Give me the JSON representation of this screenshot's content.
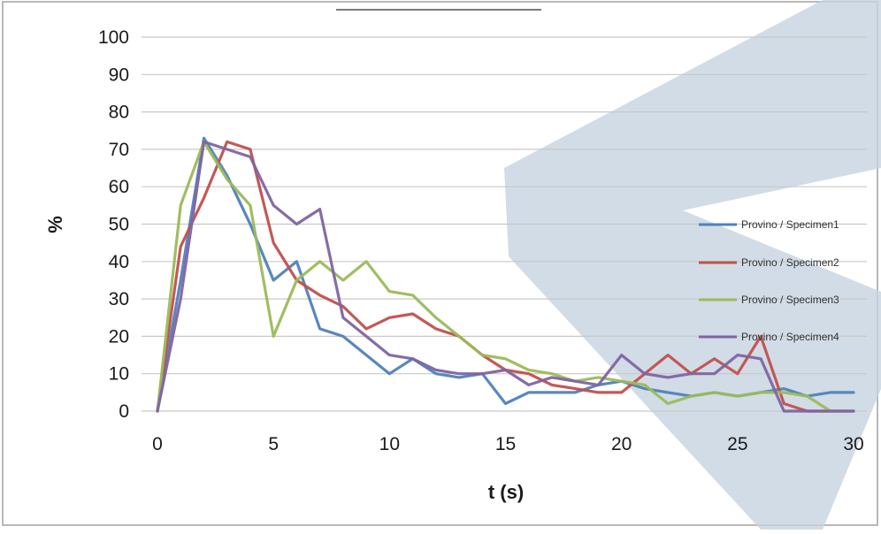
{
  "chart_data": {
    "type": "line",
    "title": "",
    "xlabel": "t (s)",
    "ylabel": "%",
    "xlim": [
      0,
      30
    ],
    "ylim": [
      0,
      100
    ],
    "x_ticks": [
      "0",
      "5",
      "10",
      "15",
      "20",
      "25",
      "30"
    ],
    "y_ticks": [
      "0",
      "10",
      "20",
      "30",
      "40",
      "50",
      "60",
      "70",
      "80",
      "90",
      "100"
    ],
    "grid": "horizontal",
    "legend_position": "right",
    "series": [
      {
        "name": "Provino / Specimen1",
        "color": "#4f81bd",
        "x": [
          0,
          1,
          2,
          3,
          4,
          5,
          6,
          7,
          8,
          9,
          10,
          11,
          12,
          13,
          14,
          15,
          16,
          17,
          18,
          19,
          20,
          21,
          22,
          23,
          24,
          25,
          26,
          27,
          28,
          29,
          30
        ],
        "y": [
          0,
          35,
          73,
          63,
          50,
          35,
          40,
          22,
          20,
          15,
          10,
          14,
          10,
          9,
          10,
          2,
          5,
          5,
          5,
          7,
          8,
          6,
          5,
          4,
          5,
          4,
          5,
          6,
          4,
          5,
          5
        ]
      },
      {
        "name": "Provino / Specimen2",
        "color": "#c0504d",
        "x": [
          0,
          1,
          2,
          3,
          4,
          5,
          6,
          7,
          8,
          9,
          10,
          11,
          12,
          13,
          14,
          15,
          16,
          17,
          18,
          19,
          20,
          21,
          22,
          23,
          24,
          25,
          26,
          27,
          28,
          29,
          30
        ],
        "y": [
          0,
          44,
          57,
          72,
          70,
          45,
          35,
          31,
          28,
          22,
          25,
          26,
          22,
          20,
          15,
          11,
          10,
          7,
          6,
          5,
          5,
          10,
          15,
          10,
          14,
          10,
          20,
          2,
          0,
          0,
          0
        ]
      },
      {
        "name": "Provino / Specimen3",
        "color": "#9bbb59",
        "x": [
          0,
          1,
          2,
          3,
          4,
          5,
          6,
          7,
          8,
          9,
          10,
          11,
          12,
          13,
          14,
          15,
          16,
          17,
          18,
          19,
          20,
          21,
          22,
          23,
          24,
          25,
          26,
          27,
          28,
          29,
          30
        ],
        "y": [
          0,
          55,
          72,
          62,
          55,
          20,
          35,
          40,
          35,
          40,
          32,
          31,
          25,
          20,
          15,
          14,
          11,
          10,
          8,
          9,
          8,
          7,
          2,
          4,
          5,
          4,
          5,
          5,
          4,
          0,
          0
        ]
      },
      {
        "name": "Provino / Specimen4",
        "color": "#8064a2",
        "x": [
          0,
          1,
          2,
          3,
          4,
          5,
          6,
          7,
          8,
          9,
          10,
          11,
          12,
          13,
          14,
          15,
          16,
          17,
          18,
          19,
          20,
          21,
          22,
          23,
          24,
          25,
          26,
          27,
          28,
          29,
          30
        ],
        "y": [
          0,
          30,
          72,
          70,
          68,
          55,
          50,
          54,
          25,
          20,
          15,
          14,
          11,
          10,
          10,
          11,
          7,
          9,
          8,
          7,
          15,
          10,
          9,
          10,
          10,
          15,
          14,
          0,
          0,
          0,
          0
        ]
      }
    ]
  },
  "colors": {
    "gridline": "#c8c8c8",
    "watermark": "#c5d3e0",
    "frame": "#b9b9b9"
  }
}
